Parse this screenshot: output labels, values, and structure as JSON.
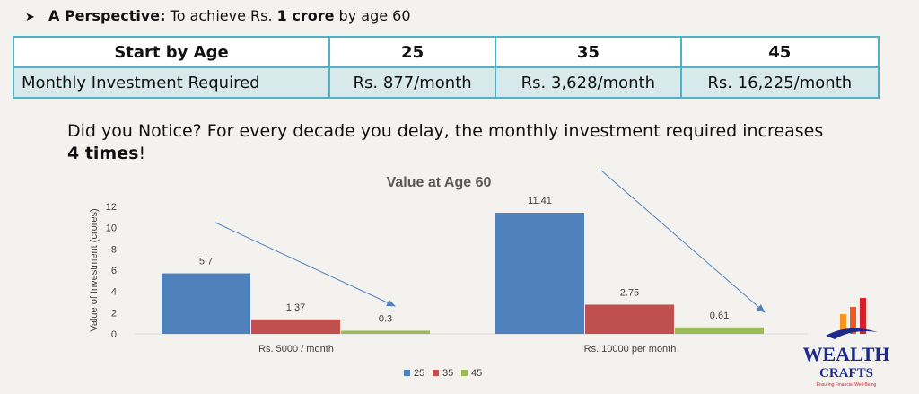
{
  "perspective": {
    "label": "A Perspective:",
    "text_before": "To achieve Rs.",
    "bold_amount": "1 crore",
    "text_after": "by age 60"
  },
  "table": {
    "header": [
      "Start by Age",
      "25",
      "35",
      "45"
    ],
    "row": [
      "Monthly Investment Required",
      "Rs. 877/month",
      "Rs. 3,628/month",
      "Rs. 16,225/month"
    ]
  },
  "notice": {
    "text_before": "Did you Notice? For every decade you delay, the monthly investment required increases",
    "bold": "4 times",
    "text_after": "!"
  },
  "chart_data": {
    "type": "bar",
    "title": "Value at Age 60",
    "ylabel": "Value of Investment (crores)",
    "xlabel": "",
    "categories": [
      "Rs. 5000 / month",
      "Rs. 10000 per month"
    ],
    "series": [
      {
        "name": "25",
        "values": [
          5.7,
          11.41
        ],
        "labels": [
          "5.7",
          "11.41"
        ],
        "color": "#4f81bd"
      },
      {
        "name": "35",
        "values": [
          1.37,
          2.75
        ],
        "labels": [
          "1.37",
          "2.75"
        ],
        "color": "#c0504d"
      },
      {
        "name": "45",
        "values": [
          0.3,
          0.61
        ],
        "labels": [
          "0.3",
          "0.61"
        ],
        "color": "#9bbb59"
      }
    ],
    "ylim": [
      0,
      12
    ],
    "yticks": [
      "0",
      "2",
      "4",
      "6",
      "8",
      "10",
      "12"
    ],
    "grid": false,
    "legend": "bottom",
    "arrow_color": "#4f81bd"
  },
  "logo": {
    "line1": "WEALTH",
    "line2": "CRAFTS",
    "tagline": "Ensuring Financial Well-Being",
    "colors": [
      "#f7941d",
      "#ef5a24",
      "#d6202a",
      "#1b2a8f"
    ]
  }
}
